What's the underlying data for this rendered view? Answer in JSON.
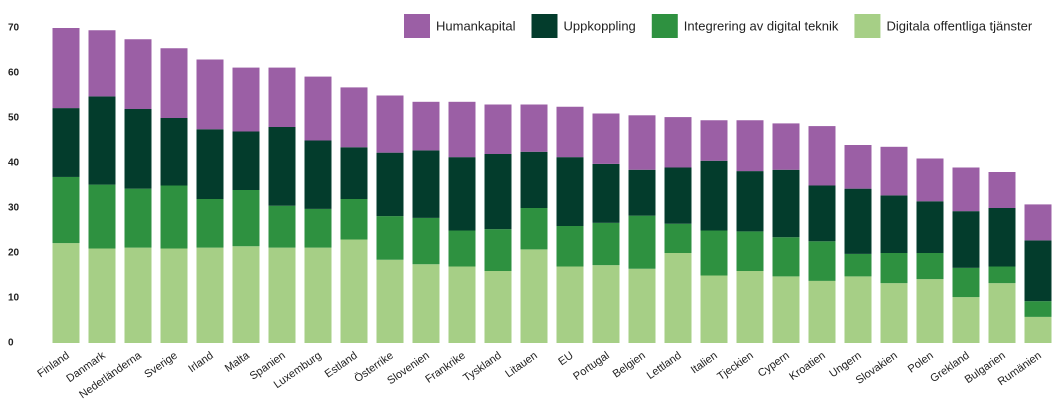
{
  "chart_data": {
    "type": "stacked_bar",
    "categories": [
      "Finland",
      "Danmark",
      "Nederländerna",
      "Sverige",
      "Irland",
      "Malta",
      "Spanien",
      "Luxemburg",
      "Estland",
      "Österrike",
      "Slovenien",
      "Frankrike",
      "Tyskland",
      "Litauen",
      "EU",
      "Portugal",
      "Belgien",
      "Lettland",
      "Italien",
      "Tjeckien",
      "Cypern",
      "Kroatien",
      "Ungern",
      "Slovakien",
      "Polen",
      "Grekland",
      "Bulgarien",
      "Rumänien"
    ],
    "series": [
      {
        "name": "Humankapital",
        "color": "#9b5fa5",
        "values": [
          17.8,
          14.7,
          15.5,
          15.5,
          15.5,
          14.2,
          13.2,
          14.2,
          13.3,
          12.7,
          10.8,
          12.3,
          11,
          10.5,
          11.2,
          11.2,
          12.1,
          11.2,
          9,
          11.3,
          10.3,
          13.2,
          9.7,
          10.8,
          9.5,
          9.7,
          8,
          8
        ]
      },
      {
        "name": "Uppkoppling",
        "color": "#033c2c",
        "values": [
          15.3,
          19.6,
          17.7,
          15,
          15.5,
          13,
          17.5,
          15.2,
          11.5,
          14.1,
          15,
          16.3,
          16.7,
          12.5,
          15.3,
          13.1,
          10.2,
          12.5,
          15.5,
          13.4,
          15,
          12.4,
          14.5,
          12.8,
          11.5,
          12.6,
          13,
          13.5
        ]
      },
      {
        "name": "Integrering av digital teknik",
        "color": "#2e9140",
        "values": [
          14.7,
          14.2,
          13.1,
          14,
          10.8,
          12.5,
          9.3,
          8.6,
          9,
          9.7,
          10.3,
          8,
          9.3,
          9.2,
          9,
          9.4,
          11.8,
          6.5,
          10,
          8.8,
          8.7,
          8.8,
          5,
          6.7,
          5.8,
          6.5,
          3.7,
          3.5
        ]
      },
      {
        "name": "Digitala offentliga tjänster",
        "color": "#a6cf86",
        "values": [
          22.2,
          21,
          21.2,
          21,
          21.2,
          21.5,
          21.2,
          21.2,
          23,
          18.5,
          17.5,
          17,
          16,
          20.8,
          17,
          17.3,
          16.5,
          20,
          15,
          16,
          14.8,
          13.8,
          14.8,
          13.3,
          14.2,
          10.2,
          13.3,
          5.8
        ]
      }
    ],
    "ylim": [
      0,
      70
    ],
    "yticks": [
      0,
      10,
      20,
      30,
      40,
      50,
      60,
      70
    ]
  }
}
